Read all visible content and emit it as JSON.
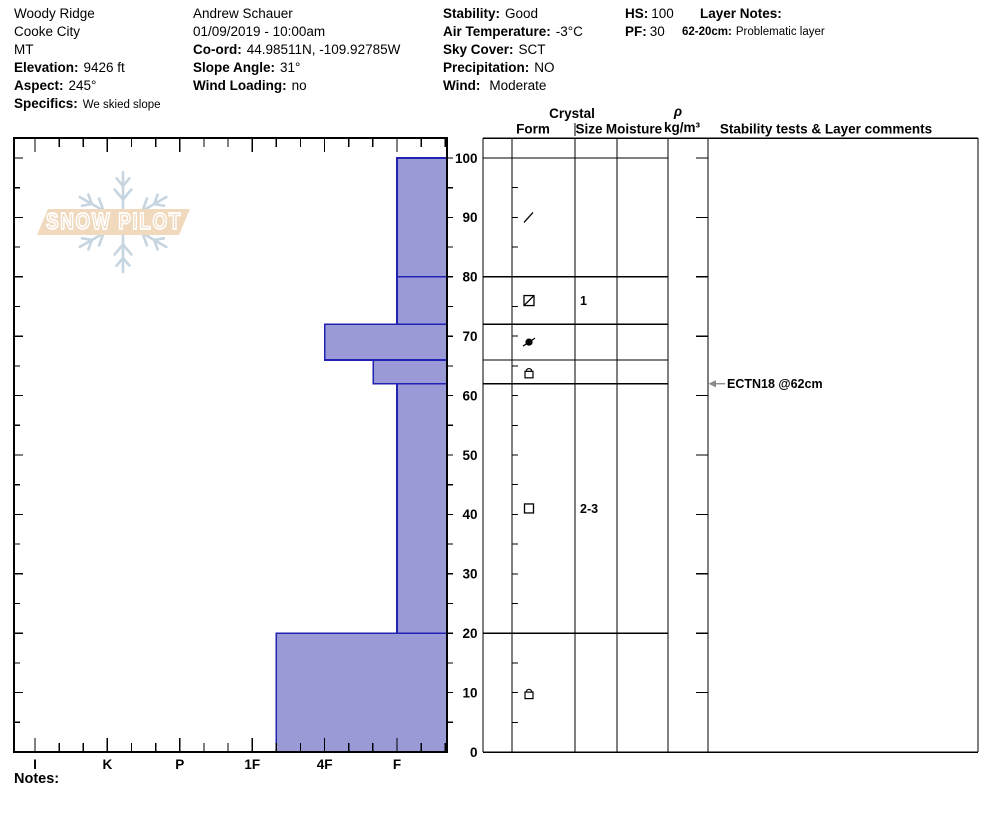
{
  "colors": {
    "bar_fill": "#9a9ad6",
    "bar_stroke": "#2121b2",
    "grid": "#000000",
    "arrow": "#8a8a8a",
    "logo_band": "#f0d9bd",
    "logo_flake": "#c7d5e0",
    "logo_text_stroke": "#ffffff"
  },
  "header": {
    "site": {
      "name": "Woody Ridge",
      "city": "Cooke City",
      "state": "MT",
      "elevation_label": "Elevation:",
      "elevation": "9426 ft",
      "aspect_label": "Aspect:",
      "aspect": "245°",
      "specifics_label": "Specifics:",
      "specifics": "We skied slope"
    },
    "observer": {
      "name": "Andrew Schauer",
      "datetime": "01/09/2019 - 10:00am",
      "coord_label": "Co-ord:",
      "coord": "44.98511N, -109.92785W",
      "slope_angle_label": "Slope Angle:",
      "slope_angle": "31°",
      "wind_loading_label": "Wind Loading:",
      "wind_loading": "no"
    },
    "conditions": {
      "stability_label": "Stability:",
      "stability": "Good",
      "air_temp_label": "Air Temperature:",
      "air_temp": "-3°C",
      "sky_label": "Sky Cover:",
      "sky": "SCT",
      "precip_label": "Precipitation:",
      "precip": "NO",
      "wind_label": "Wind:",
      "wind": "Moderate"
    },
    "totals": {
      "hs_label": "HS:",
      "hs": "100",
      "pf_label": "PF:",
      "pf": "30"
    },
    "layer_notes": {
      "title": "Layer Notes:",
      "entries": [
        {
          "range": "62-20cm:",
          "text": "Problematic layer"
        }
      ]
    }
  },
  "table": {
    "headers": {
      "crystal": "Crystal",
      "form": "Form",
      "size": "Size",
      "moisture": "Moisture",
      "rho": "ρ",
      "rho_unit": "kg/m³",
      "comments": "Stability tests & Layer comments"
    }
  },
  "chart_data": {
    "type": "bar",
    "subtype": "snow-hardness-profile",
    "orientation": "horizontal-bars-vs-depth",
    "title": "",
    "hardness_axis": {
      "categories": [
        "I",
        "K",
        "P",
        "1F",
        "4F",
        "F"
      ],
      "note": "hand hardness, hardest at left, bars extend from hardness value to right edge"
    },
    "depth_axis": {
      "unit": "cm",
      "ticks": [
        "0",
        "10",
        "20",
        "30",
        "40",
        "50",
        "60",
        "70",
        "80",
        "90",
        "100"
      ],
      "range": [
        0,
        103.5
      ],
      "minor_step_cm": 5
    },
    "layers": [
      {
        "top_cm": 100,
        "bottom_cm": 80,
        "hardness": "F",
        "hardness_index": 5,
        "form_symbol": "df-slash",
        "size": ""
      },
      {
        "top_cm": 80,
        "bottom_cm": 72,
        "hardness": "F",
        "hardness_index": 5,
        "form_symbol": "square-diagonal",
        "size": "1"
      },
      {
        "top_cm": 72,
        "bottom_cm": 66,
        "hardness": "4F",
        "hardness_index": 4,
        "form_symbol": "filled-circle-slash",
        "size": ""
      },
      {
        "top_cm": 66,
        "bottom_cm": 62,
        "hardness": "F+",
        "hardness_index": 4.67,
        "form_symbol": "cup-lock",
        "size": ""
      },
      {
        "top_cm": 62,
        "bottom_cm": 20,
        "hardness": "F",
        "hardness_index": 5,
        "form_symbol": "open-square",
        "size": "2-3"
      },
      {
        "top_cm": 20,
        "bottom_cm": 0,
        "hardness": "1F-",
        "hardness_index": 3.33,
        "form_symbol": "cup-lock",
        "size": ""
      }
    ],
    "tests": [
      {
        "label": "ECTN18 @62cm",
        "depth_cm": 62
      }
    ]
  },
  "logo": {
    "text": "SNOW PILOT"
  },
  "footer": {
    "notes_label": "Notes:"
  }
}
